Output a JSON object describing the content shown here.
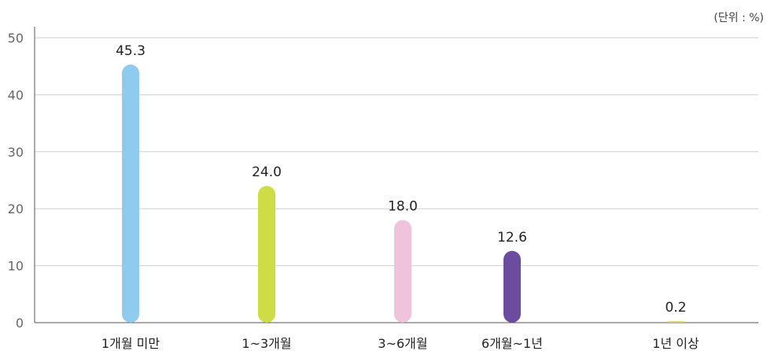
{
  "chart_data": {
    "type": "bar",
    "unit_label": "(단위 : %)",
    "categories": [
      "1개월 미만",
      "1~3개월",
      "3~6개월",
      "6개월~1년",
      "1년 이상"
    ],
    "values": [
      45.3,
      24.0,
      18.0,
      12.6,
      0.2
    ],
    "value_labels": [
      "45.3",
      "24.0",
      "18.0",
      "12.6",
      "0.2"
    ],
    "colors": [
      "#8ecbee",
      "#cedc45",
      "#efc3dc",
      "#6c4c9e",
      "#ddd370"
    ],
    "ylim": [
      0,
      50
    ],
    "yticks": [
      "0",
      "10",
      "20",
      "30",
      "40",
      "50"
    ],
    "grid": true,
    "legend": "none"
  }
}
